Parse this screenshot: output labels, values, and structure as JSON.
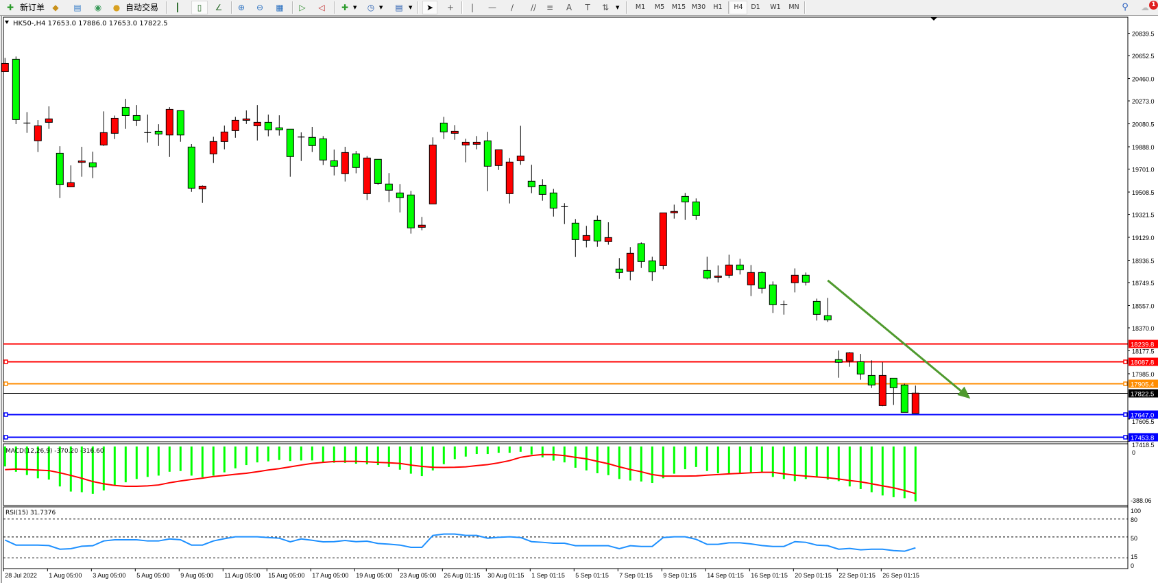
{
  "toolbar": {
    "new_order_label": "新订单",
    "auto_trading_label": "自动交易",
    "periods": [
      "M1",
      "M5",
      "M15",
      "M30",
      "H1",
      "H4",
      "D1",
      "W1",
      "MN"
    ],
    "active_period": "H4",
    "notification_count": "1",
    "icons": [
      "new-order-icon",
      "history-center-icon",
      "market-watch-icon",
      "signals-icon",
      "auto-trading-icon",
      "bar-chart-icon",
      "candlestick-icon",
      "line-chart-icon",
      "zoom-in-icon",
      "zoom-out-icon",
      "tile-windows-icon",
      "auto-scroll-icon",
      "chart-shift-icon",
      "new-chart-icon",
      "periods-icon",
      "templates-icon",
      "cursor-icon",
      "crosshair-icon",
      "vertical-line-icon",
      "horizontal-line-icon",
      "trendline-icon",
      "equidistant-channel-icon",
      "fibonacci-icon",
      "text-icon",
      "text-label-icon",
      "arrows-icon",
      "search-icon",
      "chat-icon"
    ]
  },
  "chart": {
    "header": "HK50-,H4  17653.0 17886.0 17653.0 17822.5",
    "colors": {
      "bull": "#ff0000",
      "bear": "#00ff00",
      "arrow": "#4f9a2e",
      "macd_hist": "#00ff00",
      "macd_signal": "#ff0000",
      "rsi": "#1e90ff"
    },
    "price_labels": [
      "20839.5",
      "20652.5",
      "20460.0",
      "20273.0",
      "20080.5",
      "19888.0",
      "19701.0",
      "19508.5",
      "19321.5",
      "19129.0",
      "18936.5",
      "18749.5",
      "18557.0",
      "18370.0",
      "18177.5",
      "17985.0",
      "17605.5",
      "17418.5"
    ],
    "levels": [
      {
        "price": 18239.8,
        "label": "18239.8",
        "color": "#ff0000",
        "handles": false
      },
      {
        "price": 18087.8,
        "label": "18087.8",
        "color": "#ff0000",
        "handles": true
      },
      {
        "price": 17905.4,
        "label": "17905.4",
        "color": "#ff8c00",
        "handles": true
      },
      {
        "price": 17822.5,
        "label": "17822.5",
        "color": "#000000",
        "handles": false,
        "thin": true
      },
      {
        "price": 17647.0,
        "label": "17647.0",
        "color": "#0000ff",
        "handles": true
      },
      {
        "price": 17453.8,
        "label": "17453.8",
        "color": "#0000ff",
        "handles": true
      }
    ],
    "arrow": {
      "from": {
        "candle": 75,
        "price": 18768
      },
      "to": {
        "candle": 88,
        "price": 17776
      }
    },
    "time_labels": [
      "28 Jul 2022",
      "1 Aug 05:00",
      "3 Aug 05:00",
      "5 Aug 05:00",
      "9 Aug 05:00",
      "11 Aug 05:00",
      "15 Aug 05:00",
      "17 Aug 05:00",
      "19 Aug 05:00",
      "23 Aug 05:00",
      "26 Aug 01:15",
      "30 Aug 01:15",
      "1 Sep 01:15",
      "5 Sep 01:15",
      "7 Sep 01:15",
      "9 Sep 01:15",
      "14 Sep 01:15",
      "16 Sep 01:15",
      "20 Sep 01:15",
      "22 Sep 01:15",
      "26 Sep 01:15"
    ],
    "candles": [
      [
        20518,
        20633,
        20518,
        20587
      ],
      [
        20622,
        20645,
        20078,
        20116
      ],
      [
        20087,
        20179,
        20005,
        20087
      ],
      [
        19938,
        20112,
        19844,
        20064
      ],
      [
        20093,
        20227,
        20039,
        20122
      ],
      [
        19834,
        19893,
        19458,
        19570
      ],
      [
        19552,
        19732,
        19552,
        19587
      ],
      [
        19757,
        19888,
        19637,
        19769
      ],
      [
        19754,
        19847,
        19625,
        19719
      ],
      [
        19903,
        20185,
        19895,
        20007
      ],
      [
        20001,
        20150,
        19953,
        20127
      ],
      [
        20219,
        20290,
        20039,
        20150
      ],
      [
        20150,
        20238,
        20062,
        20110
      ],
      [
        20007,
        20158,
        19924,
        20007
      ],
      [
        20018,
        20077,
        19895,
        19995
      ],
      [
        19987,
        20221,
        19803,
        20202
      ],
      [
        20191,
        20191,
        19930,
        19987
      ],
      [
        19886,
        19911,
        19510,
        19541
      ],
      [
        19535,
        19564,
        19418,
        19558
      ],
      [
        19828,
        19972,
        19752,
        19932
      ],
      [
        19932,
        20066,
        19867,
        20012
      ],
      [
        20024,
        20139,
        19964,
        20110
      ],
      [
        20110,
        20193,
        20079,
        20122
      ],
      [
        20064,
        20238,
        19941,
        20093
      ],
      [
        20093,
        20158,
        19976,
        20030
      ],
      [
        20047,
        20152,
        19982,
        20030
      ],
      [
        20036,
        20036,
        19637,
        19806
      ],
      [
        19970,
        20009,
        19769,
        19970
      ],
      [
        19967,
        20055,
        19844,
        19898
      ],
      [
        19955,
        19978,
        19735,
        19777
      ],
      [
        19771,
        19865,
        19648,
        19725
      ],
      [
        19662,
        19888,
        19597,
        19840
      ],
      [
        19829,
        19853,
        19666,
        19714
      ],
      [
        19495,
        19811,
        19441,
        19794
      ],
      [
        19783,
        19783,
        19568,
        19581
      ],
      [
        19576,
        19668,
        19424,
        19524
      ],
      [
        19501,
        19576,
        19338,
        19461
      ],
      [
        19484,
        19518,
        19160,
        19208
      ],
      [
        19213,
        19300,
        19188,
        19231
      ],
      [
        19409,
        19967,
        19409,
        19903
      ],
      [
        20087,
        20139,
        19953,
        20013
      ],
      [
        20001,
        20070,
        19947,
        20018
      ],
      [
        19903,
        19955,
        19758,
        19926
      ],
      [
        19909,
        19978,
        19867,
        19926
      ],
      [
        19938,
        20013,
        19516,
        19725
      ],
      [
        19731,
        19863,
        19694,
        19863
      ],
      [
        19495,
        19794,
        19413,
        19760
      ],
      [
        19771,
        20064,
        19737,
        19811
      ],
      [
        19599,
        19737,
        19499,
        19553
      ],
      [
        19564,
        19616,
        19436,
        19489
      ],
      [
        19501,
        19535,
        19303,
        19374
      ],
      [
        19386,
        19415,
        19240,
        19386
      ],
      [
        19248,
        19282,
        18964,
        19110
      ],
      [
        19104,
        19225,
        19045,
        19144
      ],
      [
        19271,
        19311,
        19050,
        19098
      ],
      [
        19093,
        19255,
        19068,
        19127
      ],
      [
        18863,
        18955,
        18780,
        18834
      ],
      [
        18845,
        19047,
        18769,
        18995
      ],
      [
        19075,
        19087,
        18872,
        18926
      ],
      [
        18932,
        18966,
        18763,
        18840
      ],
      [
        18891,
        19334,
        18861,
        19334
      ],
      [
        19334,
        19403,
        19286,
        19346
      ],
      [
        19472,
        19501,
        19275,
        19426
      ],
      [
        19426,
        19455,
        19275,
        19311
      ],
      [
        18851,
        18966,
        18776,
        18788
      ],
      [
        18794,
        18893,
        18751,
        18805
      ],
      [
        18811,
        18983,
        18788,
        18897
      ],
      [
        18897,
        18949,
        18817,
        18857
      ],
      [
        18730,
        18897,
        18636,
        18834
      ],
      [
        18834,
        18845,
        18659,
        18702
      ],
      [
        18730,
        18759,
        18495,
        18564
      ],
      [
        18567,
        18598,
        18481,
        18567
      ],
      [
        18748,
        18868,
        18667,
        18811
      ],
      [
        18811,
        18834,
        18725,
        18753
      ],
      [
        18592,
        18615,
        18431,
        18483
      ],
      [
        18472,
        18621,
        18420,
        18437
      ],
      [
        18104,
        18180,
        17952,
        18081
      ],
      [
        18092,
        18167,
        18044,
        18161
      ],
      [
        18086,
        18151,
        17935,
        17983
      ],
      [
        17971,
        18098,
        17866,
        17891
      ],
      [
        17718,
        18081,
        17713,
        17971
      ],
      [
        17948,
        17948,
        17724,
        17868
      ],
      [
        17891,
        17902,
        17661,
        17661
      ],
      [
        17653,
        17886,
        17653,
        17822.5
      ]
    ]
  },
  "macd": {
    "label": "MACD(12,26,9) -370.20 -316.60",
    "axis_labels": [
      "0",
      "-388.06"
    ],
    "range": [
      -388.06,
      0
    ],
    "histogram": [
      -134,
      -170,
      -192,
      -214,
      -223,
      -269,
      -303,
      -308,
      -318,
      -296,
      -259,
      -241,
      -219,
      -205,
      -196,
      -170,
      -165,
      -196,
      -207,
      -196,
      -174,
      -147,
      -125,
      -107,
      -100,
      -91,
      -98,
      -94,
      -94,
      -104,
      -109,
      -110,
      -116,
      -120,
      -125,
      -138,
      -156,
      -183,
      -199,
      -161,
      -119,
      -85,
      -68,
      -51,
      -51,
      -42,
      -42,
      -36,
      -54,
      -73,
      -95,
      -107,
      -143,
      -161,
      -180,
      -193,
      -219,
      -229,
      -236,
      -245,
      -214,
      -183,
      -153,
      -138,
      -165,
      -180,
      -180,
      -177,
      -177,
      -177,
      -205,
      -219,
      -233,
      -219,
      -205,
      -223,
      -233,
      -269,
      -286,
      -308,
      -330,
      -341,
      -348,
      -370.2
    ],
    "signal": [
      -156,
      -152,
      -155,
      -159,
      -162,
      -177,
      -195,
      -214,
      -236,
      -251,
      -262,
      -268,
      -268,
      -265,
      -259,
      -244,
      -232,
      -222,
      -213,
      -202,
      -195,
      -187,
      -180,
      -170,
      -158,
      -149,
      -137,
      -125,
      -114,
      -107,
      -101,
      -100,
      -100,
      -103,
      -107,
      -110,
      -114,
      -125,
      -134,
      -140,
      -141,
      -140,
      -137,
      -129,
      -122,
      -110,
      -95,
      -73,
      -61,
      -54,
      -55,
      -61,
      -73,
      -83,
      -100,
      -116,
      -137,
      -155,
      -170,
      -189,
      -199,
      -199,
      -199,
      -198,
      -193,
      -189,
      -184,
      -181,
      -177,
      -174,
      -174,
      -184,
      -193,
      -199,
      -205,
      -210,
      -219,
      -229,
      -238,
      -251,
      -265,
      -278,
      -296,
      -316.6
    ]
  },
  "rsi": {
    "label": "RSI(15) 31.7376",
    "axis_labels": [
      "100",
      "80",
      "50",
      "15",
      "0"
    ],
    "levels": [
      80,
      50,
      15
    ],
    "values": [
      44.8,
      36.4,
      36.4,
      36.4,
      35.6,
      29.5,
      30.3,
      34.5,
      35.3,
      43.3,
      45.2,
      45.2,
      45.2,
      43.3,
      43.3,
      46.7,
      45.2,
      36.4,
      36.4,
      43.3,
      47.1,
      50.2,
      50.2,
      50.2,
      49.0,
      47.9,
      41.8,
      46.7,
      44.4,
      41.8,
      42.1,
      44.1,
      42.1,
      42.9,
      39.1,
      37.9,
      36.4,
      32.6,
      32.6,
      52.5,
      54.8,
      54.8,
      52.5,
      52.5,
      47.9,
      49.4,
      50.2,
      49.0,
      42.1,
      41.0,
      39.5,
      39.5,
      35.3,
      35.3,
      35.3,
      35.3,
      30.3,
      35.3,
      34.1,
      34.1,
      49.0,
      50.2,
      50.2,
      46.0,
      37.6,
      37.6,
      40.2,
      40.2,
      38.3,
      35.6,
      34.1,
      34.1,
      42.1,
      41.0,
      36.4,
      35.3,
      29.5,
      30.7,
      28.4,
      29.5,
      29.5,
      27.2,
      26.1,
      31.74
    ]
  }
}
